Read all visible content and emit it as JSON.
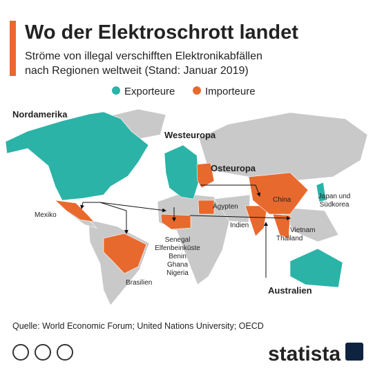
{
  "header": {
    "title": "Wo der Elektroschrott landet",
    "subtitle": [
      "Ströme von illegal verschifften Elektronikabfällen",
      "nach Regionen weltweit (Stand: Januar 2019)"
    ]
  },
  "legend": [
    {
      "label": "Exporteure",
      "color": "#2bb3a7"
    },
    {
      "label": "Importeure",
      "color": "#e8692d"
    }
  ],
  "map_labels": {
    "nordamerika": "Nordamerika",
    "westeuropa": "Westeuropa",
    "osteuropa": "Osteuropa",
    "japan": [
      "Japan und",
      "Südkorea"
    ],
    "mexiko": "Mexiko",
    "aegypten": "Ägypten",
    "china": "China",
    "indien": "Indien",
    "vietnam": "Vietnam",
    "thailand": "Thailand",
    "westafrika": [
      "Senegal",
      "Elfenbeinküste",
      "Benin",
      "Ghana",
      "Nigeria"
    ],
    "brasilien": "Brasilien",
    "australien": "Australien"
  },
  "source": "Quelle: World Economic Forum; United Nations University; OECD",
  "brand": "statista"
}
